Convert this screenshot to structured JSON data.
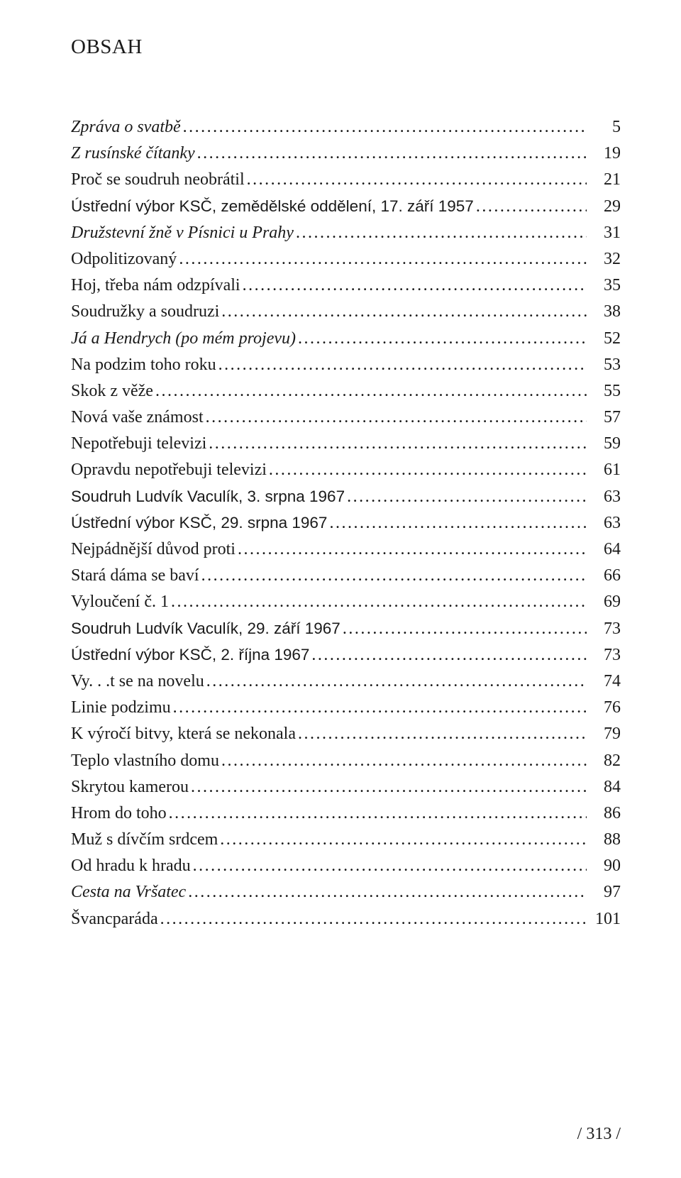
{
  "heading": "OBSAH",
  "footer": "/ 313 /",
  "entries": [
    {
      "title": "Zpráva o svatbě",
      "page": "5",
      "style": "italic"
    },
    {
      "title": "Z rusínské čítanky",
      "page": "19",
      "style": "italic"
    },
    {
      "title": "Proč se soudruh neobrátil",
      "page": "21",
      "style": "normal"
    },
    {
      "title": "Ústřední výbor KSČ, zemědělské oddělení, 17. září 1957",
      "page": "29",
      "style": "sans"
    },
    {
      "title": "Družstevní žně v Písnici u Prahy",
      "page": "31",
      "style": "italic"
    },
    {
      "title": "Odpolitizovaný",
      "page": "32",
      "style": "normal"
    },
    {
      "title": "Hoj, třeba nám odzpívali",
      "page": "35",
      "style": "normal"
    },
    {
      "title": "Soudružky a soudruzi",
      "page": "38",
      "style": "normal"
    },
    {
      "title": "Já a Hendrych (po mém projevu)",
      "page": "52",
      "style": "italic"
    },
    {
      "title": "Na podzim toho roku",
      "page": "53",
      "style": "normal"
    },
    {
      "title": "Skok z věže",
      "page": "55",
      "style": "normal"
    },
    {
      "title": "Nová vaše známost",
      "page": "57",
      "style": "normal"
    },
    {
      "title": "Nepotřebuji televizi",
      "page": "59",
      "style": "normal"
    },
    {
      "title": "Opravdu nepotřebuji televizi",
      "page": "61",
      "style": "normal"
    },
    {
      "title": "Soudruh Ludvík Vaculík, 3. srpna 1967",
      "page": "63",
      "style": "sans"
    },
    {
      "title": "Ústřední výbor KSČ, 29. srpna 1967",
      "page": "63",
      "style": "sans"
    },
    {
      "title": "Nejpádnější důvod proti",
      "page": "64",
      "style": "normal"
    },
    {
      "title": "Stará dáma se baví",
      "page": "66",
      "style": "normal"
    },
    {
      "title": "Vyloučení č. 1",
      "page": "69",
      "style": "normal"
    },
    {
      "title": "Soudruh Ludvík Vaculík, 29. září 1967",
      "page": "73",
      "style": "sans"
    },
    {
      "title": "Ústřední výbor KSČ, 2. října 1967",
      "page": "73",
      "style": "sans"
    },
    {
      "title": "Vy. . .t se na novelu",
      "page": "74",
      "style": "normal"
    },
    {
      "title": "Linie podzimu",
      "page": "76",
      "style": "normal"
    },
    {
      "title": "K výročí bitvy, která se nekonala",
      "page": "79",
      "style": "normal"
    },
    {
      "title": "Teplo vlastního domu",
      "page": "82",
      "style": "normal"
    },
    {
      "title": "Skrytou kamerou",
      "page": "84",
      "style": "normal"
    },
    {
      "title": "Hrom do toho",
      "page": "86",
      "style": "normal"
    },
    {
      "title": "Muž s dívčím srdcem",
      "page": "88",
      "style": "normal"
    },
    {
      "title": "Od hradu k hradu",
      "page": "90",
      "style": "normal"
    },
    {
      "title": "Cesta na Vršatec",
      "page": "97",
      "style": "italic"
    },
    {
      "title": "Švancparáda",
      "page": "101",
      "style": "normal"
    }
  ]
}
